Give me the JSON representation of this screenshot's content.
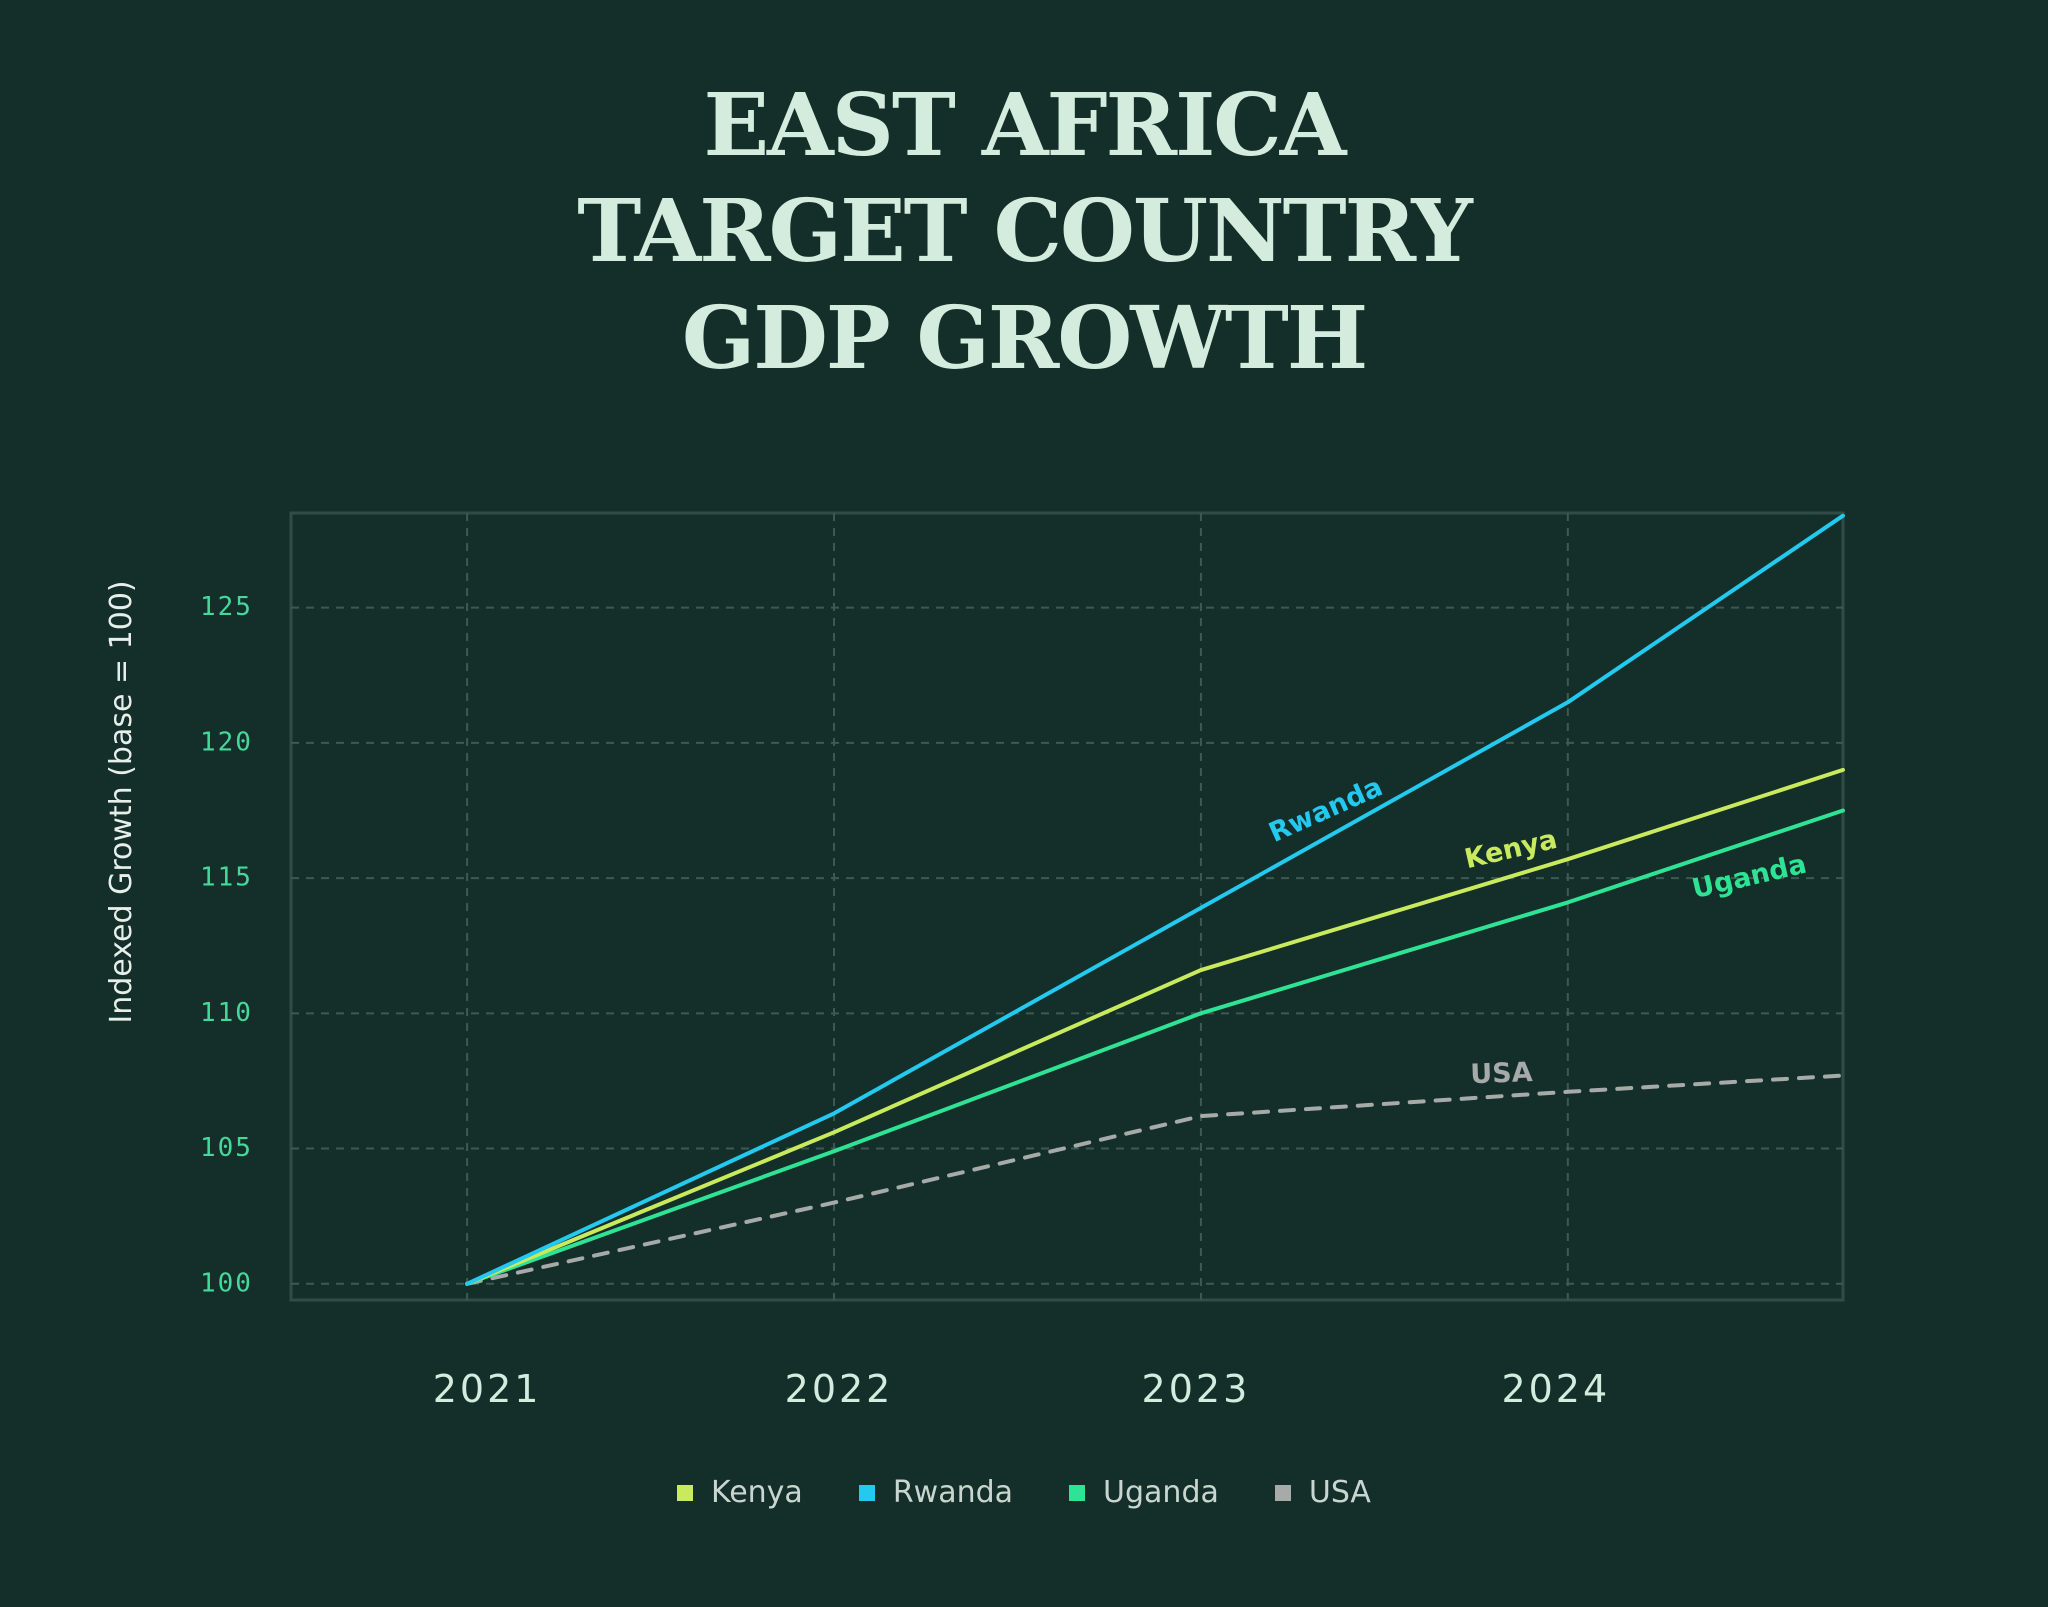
{
  "title": {
    "lines": [
      "EAST AFRICA",
      "TARGET COUNTRY",
      "GDP GROWTH"
    ]
  },
  "chart_data": {
    "type": "line",
    "title": "EAST AFRICA TARGET COUNTRY GDP GROWTH",
    "xlabel": "",
    "ylabel": "Indexed Growth (base = 100)",
    "x": [
      2021,
      2022,
      2023,
      2024,
      2024.75
    ],
    "x_ticks": [
      "2021",
      "2022",
      "2023",
      "2024"
    ],
    "y_ticks": [
      "100",
      "105",
      "110",
      "115",
      "120",
      "125"
    ],
    "xlim": [
      2020.52,
      2024.75
    ],
    "ylim": [
      99.4,
      128.5
    ],
    "grid": true,
    "series": [
      {
        "name": "Kenya",
        "color": "#c9ea5c",
        "dashed": false,
        "label": "Kenya",
        "values": [
          100,
          105.6,
          111.6,
          115.7,
          119.0
        ]
      },
      {
        "name": "Rwanda",
        "color": "#23c9ee",
        "dashed": false,
        "label": "Rwanda",
        "values": [
          100,
          106.3,
          113.9,
          121.5,
          128.4
        ]
      },
      {
        "name": "Uganda",
        "color": "#2fe394",
        "dashed": false,
        "label": "Uganda",
        "values": [
          100,
          104.9,
          110.0,
          114.1,
          117.5
        ]
      },
      {
        "name": "USA",
        "color": "#a6aaa8",
        "dashed": true,
        "label": "USA",
        "values": [
          100,
          103.0,
          106.2,
          107.1,
          107.7
        ]
      }
    ]
  }
}
